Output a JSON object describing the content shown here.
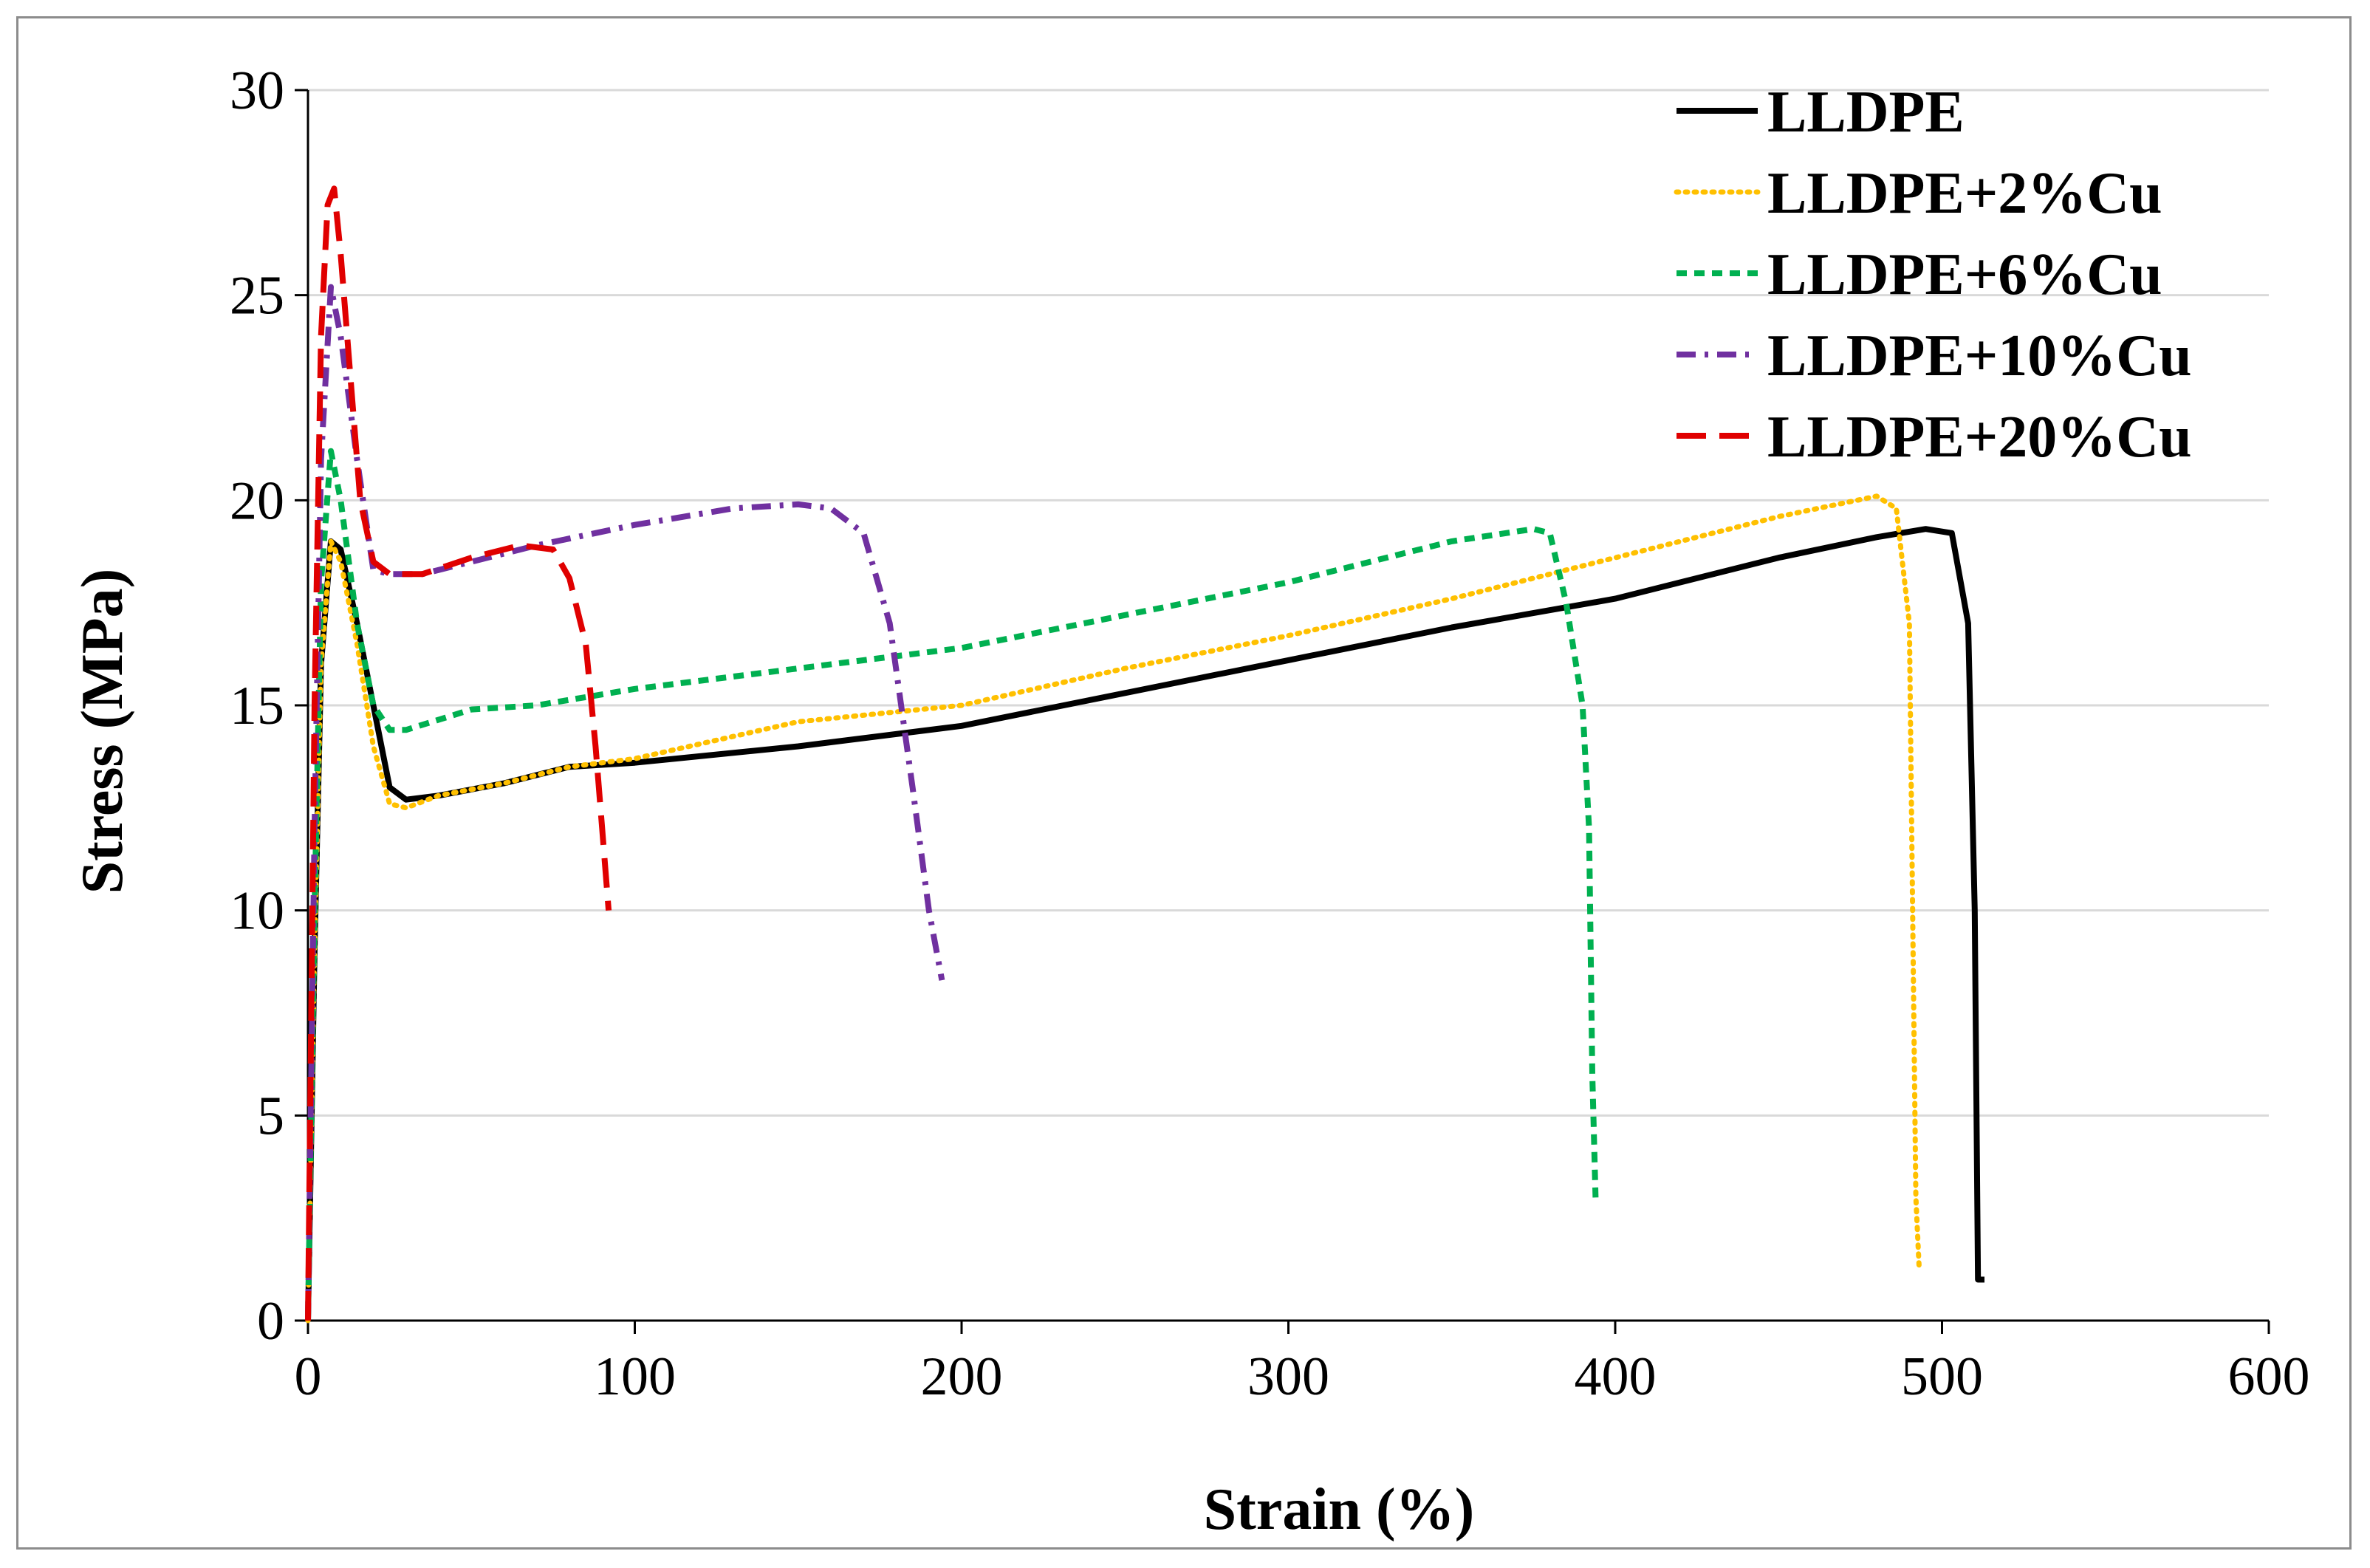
{
  "chart_data": {
    "type": "line",
    "title": "",
    "xlabel": "Strain (%)",
    "ylabel": "Stress (MPa)",
    "xlim": [
      0,
      600
    ],
    "ylim": [
      0,
      30
    ],
    "xticks": [
      "0",
      "100",
      "200",
      "300",
      "400",
      "500",
      "600"
    ],
    "yticks": [
      "0",
      "5",
      "10",
      "15",
      "20",
      "25",
      "30"
    ],
    "grid": "horizontal",
    "legend_position": "top-right",
    "series": [
      {
        "name": "LLDPE",
        "color": "#000000",
        "dash": "solid",
        "points": [
          [
            0,
            0
          ],
          [
            2,
            9
          ],
          [
            4,
            16
          ],
          [
            7,
            19
          ],
          [
            10,
            18.8
          ],
          [
            15,
            17
          ],
          [
            20,
            15
          ],
          [
            25,
            13
          ],
          [
            30,
            12.7
          ],
          [
            40,
            12.8
          ],
          [
            60,
            13.1
          ],
          [
            80,
            13.5
          ],
          [
            100,
            13.6
          ],
          [
            150,
            14.0
          ],
          [
            200,
            14.5
          ],
          [
            250,
            15.3
          ],
          [
            300,
            16.1
          ],
          [
            350,
            16.9
          ],
          [
            400,
            17.6
          ],
          [
            450,
            18.6
          ],
          [
            480,
            19.1
          ],
          [
            495,
            19.3
          ],
          [
            503,
            19.2
          ],
          [
            508,
            17
          ],
          [
            510,
            10
          ],
          [
            511,
            1
          ],
          [
            513,
            1
          ]
        ]
      },
      {
        "name": "LLDPE+2%Cu",
        "color": "#ffc000",
        "dash": "dotted",
        "points": [
          [
            0,
            0
          ],
          [
            2,
            9
          ],
          [
            4,
            16
          ],
          [
            7,
            19
          ],
          [
            10,
            18.5
          ],
          [
            15,
            16.5
          ],
          [
            20,
            14
          ],
          [
            25,
            12.6
          ],
          [
            30,
            12.5
          ],
          [
            40,
            12.8
          ],
          [
            60,
            13.1
          ],
          [
            80,
            13.5
          ],
          [
            100,
            13.7
          ],
          [
            150,
            14.6
          ],
          [
            200,
            15.0
          ],
          [
            250,
            15.9
          ],
          [
            300,
            16.7
          ],
          [
            350,
            17.6
          ],
          [
            400,
            18.6
          ],
          [
            450,
            19.6
          ],
          [
            480,
            20.1
          ],
          [
            486,
            19.8
          ],
          [
            490,
            17
          ],
          [
            491,
            10
          ],
          [
            492,
            3
          ],
          [
            493,
            1.3
          ]
        ]
      },
      {
        "name": "LLDPE+6%Cu",
        "color": "#00b050",
        "dash": "dashed",
        "points": [
          [
            0,
            0
          ],
          [
            2,
            10
          ],
          [
            4,
            18
          ],
          [
            7,
            21.2
          ],
          [
            10,
            20
          ],
          [
            15,
            17
          ],
          [
            20,
            15
          ],
          [
            25,
            14.4
          ],
          [
            30,
            14.4
          ],
          [
            50,
            14.9
          ],
          [
            70,
            15.0
          ],
          [
            100,
            15.4
          ],
          [
            150,
            15.9
          ],
          [
            200,
            16.4
          ],
          [
            250,
            17.2
          ],
          [
            300,
            18.0
          ],
          [
            350,
            19.0
          ],
          [
            375,
            19.3
          ],
          [
            380,
            19.2
          ],
          [
            385,
            17.5
          ],
          [
            390,
            15
          ],
          [
            392,
            12
          ],
          [
            393,
            6
          ],
          [
            394,
            3
          ]
        ]
      },
      {
        "name": "LLDPE+10%Cu",
        "color": "#7030a0",
        "dash": "dashdot",
        "points": [
          [
            0,
            0
          ],
          [
            2,
            12
          ],
          [
            4,
            21
          ],
          [
            7,
            25.2
          ],
          [
            10,
            24
          ],
          [
            15,
            21
          ],
          [
            20,
            18.3
          ],
          [
            25,
            18.2
          ],
          [
            35,
            18.2
          ],
          [
            50,
            18.5
          ],
          [
            70,
            18.9
          ],
          [
            100,
            19.4
          ],
          [
            130,
            19.8
          ],
          [
            150,
            19.9
          ],
          [
            160,
            19.8
          ],
          [
            170,
            19.2
          ],
          [
            178,
            17
          ],
          [
            185,
            13
          ],
          [
            190,
            10
          ],
          [
            194,
            8.3
          ]
        ]
      },
      {
        "name": "LLDPE+20%Cu",
        "color": "#e00000",
        "dash": "longdash",
        "points": [
          [
            0,
            0
          ],
          [
            2,
            15
          ],
          [
            4,
            24
          ],
          [
            6,
            27.2
          ],
          [
            8,
            27.6
          ],
          [
            10,
            26
          ],
          [
            13,
            23
          ],
          [
            16,
            20
          ],
          [
            20,
            18.5
          ],
          [
            25,
            18.2
          ],
          [
            35,
            18.2
          ],
          [
            50,
            18.6
          ],
          [
            65,
            18.9
          ],
          [
            75,
            18.8
          ],
          [
            80,
            18.1
          ],
          [
            85,
            16.5
          ],
          [
            88,
            14
          ],
          [
            90,
            12
          ],
          [
            92,
            10
          ]
        ]
      }
    ]
  }
}
